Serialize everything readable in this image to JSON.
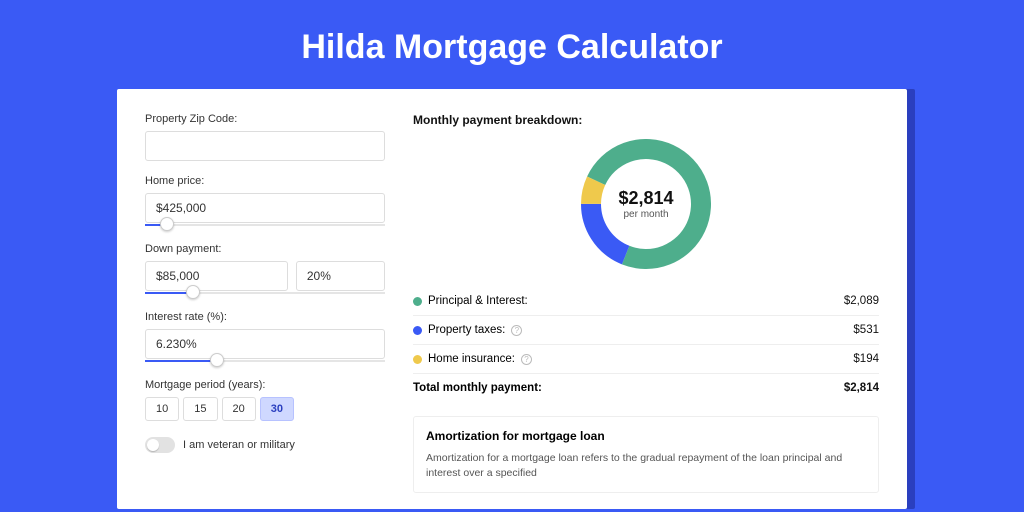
{
  "page": {
    "title": "Hilda Mortgage Calculator",
    "background_color": "#3a5af5",
    "card_background": "#ffffff"
  },
  "form": {
    "zip": {
      "label": "Property Zip Code:",
      "value": ""
    },
    "home_price": {
      "label": "Home price:",
      "value": "$425,000",
      "slider_percent": 9
    },
    "down_payment": {
      "label": "Down payment:",
      "amount": "$85,000",
      "percent": "20%",
      "slider_percent": 20
    },
    "interest_rate": {
      "label": "Interest rate (%):",
      "value": "6.230%",
      "slider_percent": 30
    },
    "mortgage_period": {
      "label": "Mortgage period (years):",
      "options": [
        "10",
        "15",
        "20",
        "30"
      ],
      "selected": "30"
    },
    "veteran": {
      "label": "I am veteran or military",
      "checked": false
    }
  },
  "breakdown": {
    "title": "Monthly payment breakdown:",
    "donut": {
      "center_amount": "$2,814",
      "center_sub": "per month",
      "size": 130,
      "thickness": 20,
      "slices": [
        {
          "label": "Principal & Interest:",
          "value": "$2,089",
          "color": "#4eae8c",
          "percent": 74,
          "key": "principal"
        },
        {
          "label": "Property taxes:",
          "value": "$531",
          "color": "#3a5af5",
          "percent": 19,
          "key": "taxes",
          "info": true
        },
        {
          "label": "Home insurance:",
          "value": "$194",
          "color": "#efc94c",
          "percent": 7,
          "key": "insurance",
          "info": true
        }
      ]
    },
    "total": {
      "label": "Total monthly payment:",
      "value": "$2,814"
    }
  },
  "amortization": {
    "title": "Amortization for mortgage loan",
    "text": "Amortization for a mortgage loan refers to the gradual repayment of the loan principal and interest over a specified"
  }
}
